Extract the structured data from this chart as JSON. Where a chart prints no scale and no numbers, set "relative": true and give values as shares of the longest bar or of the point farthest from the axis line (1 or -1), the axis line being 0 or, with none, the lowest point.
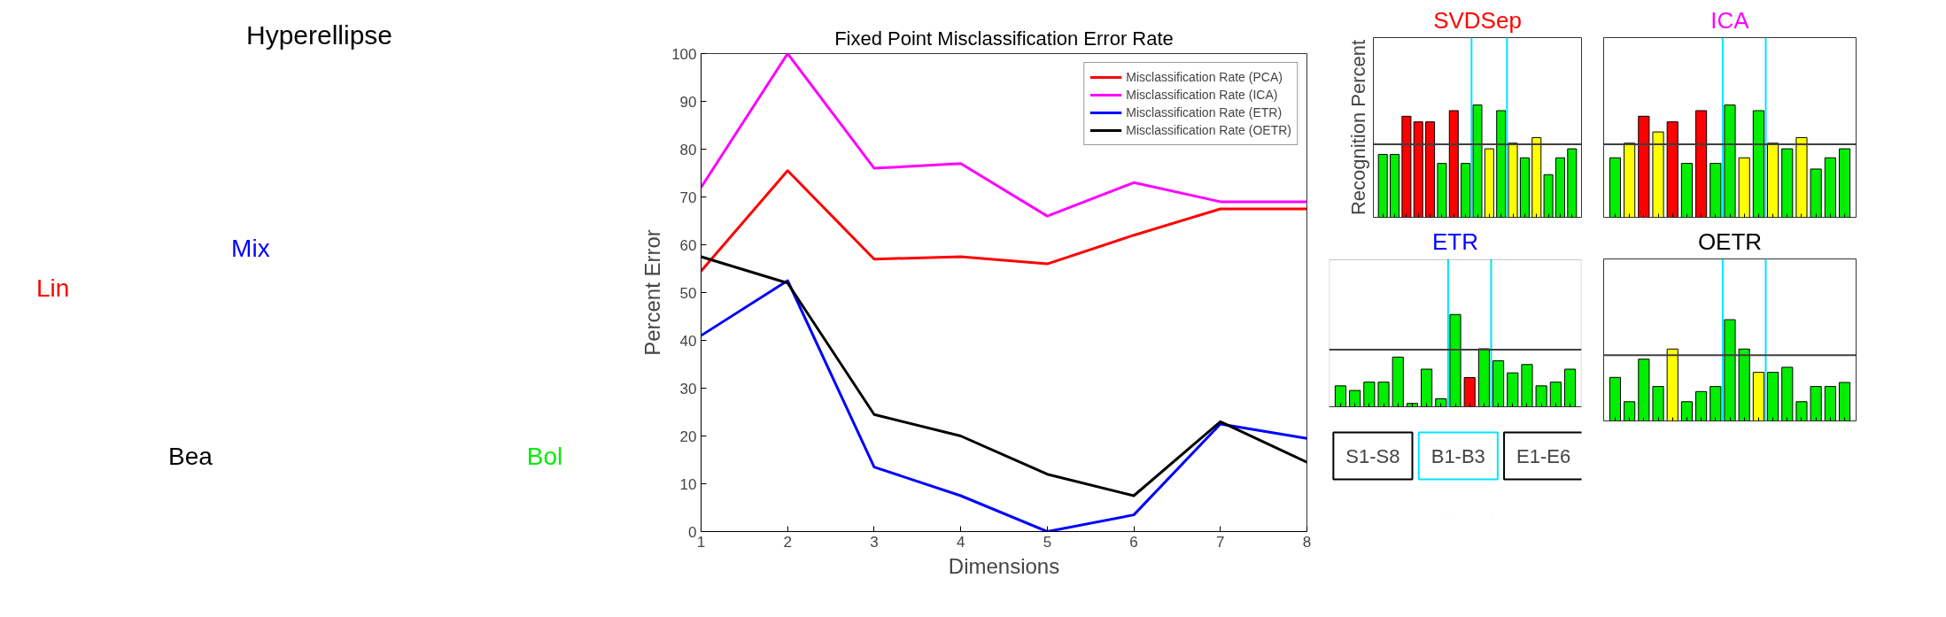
{
  "chart_data": [
    {
      "type": "other",
      "title": "Hyperellipse",
      "annotations": [
        "Lin",
        "Mix",
        "Bea",
        "Bol"
      ]
    },
    {
      "type": "line",
      "title": "Fixed Point Misclassification Error Rate",
      "xlabel": "Dimensions",
      "ylabel": "Percent Error",
      "x": [
        1,
        2,
        3,
        4,
        5,
        6,
        7,
        8
      ],
      "xlim": [
        1,
        8
      ],
      "ylim": [
        0,
        100
      ],
      "xticks": [
        1,
        2,
        3,
        4,
        5,
        6,
        7,
        8
      ],
      "yticks": [
        0,
        10,
        20,
        30,
        40,
        50,
        60,
        70,
        80,
        90,
        100
      ],
      "grid": false,
      "legend": "top right",
      "line_style": "solid",
      "marker": "none",
      "series": [
        {
          "name": "Misclassification Rate (PCA)",
          "color": "#ff0000",
          "values": [
            54.5,
            75.5,
            57,
            57.5,
            56,
            62,
            67.5,
            67.5
          ]
        },
        {
          "name": "Misclassification Rate (ICA)",
          "color": "#ff00ff",
          "values": [
            72,
            100,
            76,
            77,
            66,
            73,
            69,
            69
          ]
        },
        {
          "name": "Misclassification Rate (ETR)",
          "color": "#0000ff",
          "values": [
            41,
            52.5,
            13.5,
            7.5,
            0,
            3.5,
            22.5,
            19.5
          ]
        },
        {
          "name": "Misclassification Rate (OETR)",
          "color": "#000000",
          "values": [
            57.5,
            52,
            24.5,
            20,
            12,
            7.5,
            23,
            14.5
          ]
        }
      ]
    },
    {
      "type": "bar",
      "title": "SVDSep",
      "ylabel": "Recognition Percent",
      "relative": true,
      "categories": [
        null,
        null,
        null,
        null,
        null,
        null,
        null,
        null,
        null,
        null,
        null,
        null,
        null,
        null,
        null,
        null,
        null
      ],
      "values": [
        0.56,
        0.56,
        0.9,
        0.85,
        0.85,
        0.48,
        0.95,
        0.48,
        1,
        0.61,
        0.95,
        0.66,
        0.53,
        0.71,
        0.38,
        0.53,
        0.61
      ],
      "colors": [
        "#00ee00",
        "#00ee00",
        "#ff0000",
        "#ff0000",
        "#ff0000",
        "#00ee00",
        "#ff0000",
        "#00ee00",
        "#00ee00",
        "#ffff00",
        "#00ee00",
        "#ffff00",
        "#00ee00",
        "#ffff00",
        "#00ee00",
        "#00ee00",
        "#00ee00"
      ],
      "ref_lines": [
        {
          "axis": "y",
          "value": 0.65,
          "color": "#404040"
        }
      ]
    },
    {
      "type": "bar",
      "title": "ICA",
      "relative": true,
      "categories": [
        null,
        null,
        null,
        null,
        null,
        null,
        null,
        null,
        null,
        null,
        null,
        null,
        null,
        null,
        null,
        null,
        null
      ],
      "values": [
        0.53,
        0.66,
        0.9,
        0.76,
        0.85,
        0.48,
        0.95,
        0.48,
        1,
        0.53,
        0.95,
        0.66,
        0.61,
        0.71,
        0.43,
        0.53,
        0.61
      ],
      "colors": [
        "#00ee00",
        "#ffff00",
        "#ff0000",
        "#ffff00",
        "#ff0000",
        "#00ee00",
        "#ff0000",
        "#00ee00",
        "#00ee00",
        "#ffff00",
        "#00ee00",
        "#ffff00",
        "#00ee00",
        "#ffff00",
        "#00ee00",
        "#00ee00",
        "#00ee00"
      ],
      "ref_lines": [
        {
          "axis": "y",
          "value": 0.65,
          "color": "#404040"
        }
      ]
    },
    {
      "type": "bar",
      "title": "ETR",
      "relative": true,
      "annotations": [
        "S1-S8",
        "B1-B3",
        "E1-E6"
      ],
      "categories": [
        null,
        null,
        null,
        null,
        null,
        null,
        null,
        null,
        null,
        null,
        null,
        null,
        null,
        null,
        null,
        null,
        null
      ],
      "values": [
        0.23,
        0.18,
        0.27,
        0.27,
        0.54,
        0.04,
        0.41,
        0.09,
        1,
        0.32,
        0.63,
        0.5,
        0.37,
        0.46,
        0.23,
        0.27,
        0.41
      ],
      "colors": [
        "#00ee00",
        "#00ee00",
        "#00ee00",
        "#00ee00",
        "#00ee00",
        "#00ee00",
        "#00ee00",
        "#00ee00",
        "#00ee00",
        "#ff0000",
        "#00ee00",
        "#00ee00",
        "#00ee00",
        "#00ee00",
        "#00ee00",
        "#00ee00",
        "#00ee00"
      ],
      "ref_lines": [
        {
          "axis": "y",
          "value": 0.62,
          "color": "#404040"
        }
      ]
    },
    {
      "type": "bar",
      "title": "OETR",
      "relative": true,
      "categories": [
        null,
        null,
        null,
        null,
        null,
        null,
        null,
        null,
        null,
        null,
        null,
        null,
        null,
        null,
        null,
        null,
        null
      ],
      "values": [
        0.43,
        0.19,
        0.61,
        0.34,
        0.71,
        0.19,
        0.29,
        0.34,
        1,
        0.71,
        0.48,
        0.48,
        0.53,
        0.19,
        0.34,
        0.34,
        0.38
      ],
      "colors": [
        "#00ee00",
        "#00ee00",
        "#00ee00",
        "#00ee00",
        "#ffff00",
        "#00ee00",
        "#00ee00",
        "#00ee00",
        "#00ee00",
        "#00ee00",
        "#ffff00",
        "#00ee00",
        "#00ee00",
        "#00ee00",
        "#00ee00",
        "#00ee00",
        "#00ee00"
      ],
      "ref_lines": [
        {
          "axis": "y",
          "value": 0.65,
          "color": "#404040"
        }
      ]
    }
  ]
}
